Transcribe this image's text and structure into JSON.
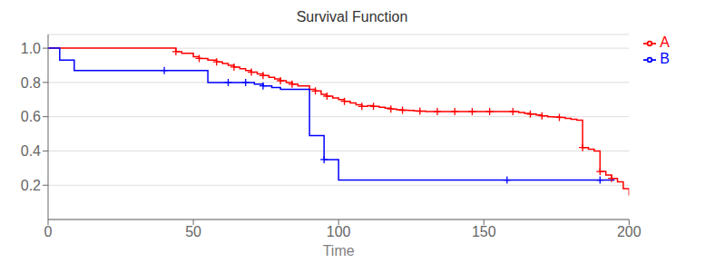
{
  "chart_data": {
    "type": "step",
    "title": "Survival Function",
    "xlabel": "Time",
    "xlim": [
      0,
      200
    ],
    "ylim": [
      0,
      1.08
    ],
    "xticks": [
      0,
      50,
      100,
      150,
      200
    ],
    "yticks": [
      0.2,
      0.4,
      0.6,
      0.8,
      {
        "value": 1.0,
        "label": "1.0"
      }
    ],
    "grid": "y",
    "legend": "right",
    "series": [
      {
        "name": "A",
        "color": "#FF0000",
        "marker": "plus",
        "x": [
          0,
          42,
          44,
          46,
          50,
          52,
          55,
          58,
          60,
          62,
          64,
          66,
          68,
          70,
          72,
          74,
          76,
          78,
          80,
          82,
          84,
          86,
          90,
          92,
          94,
          96,
          98,
          100,
          102,
          104,
          106,
          108,
          110,
          112,
          114,
          116,
          118,
          120,
          122,
          124,
          126,
          128,
          130,
          150,
          160,
          162,
          164,
          166,
          168,
          170,
          172,
          174,
          176,
          178,
          180,
          182,
          184,
          186,
          188,
          190,
          192,
          194,
          196,
          198,
          200
        ],
        "values": [
          1.0,
          1.0,
          0.98,
          0.97,
          0.95,
          0.94,
          0.93,
          0.92,
          0.91,
          0.9,
          0.89,
          0.88,
          0.87,
          0.86,
          0.85,
          0.84,
          0.83,
          0.82,
          0.81,
          0.8,
          0.79,
          0.78,
          0.76,
          0.75,
          0.73,
          0.72,
          0.71,
          0.7,
          0.69,
          0.68,
          0.67,
          0.66,
          0.665,
          0.66,
          0.655,
          0.65,
          0.645,
          0.64,
          0.638,
          0.636,
          0.634,
          0.632,
          0.63,
          0.63,
          0.63,
          0.625,
          0.62,
          0.615,
          0.61,
          0.605,
          0.6,
          0.598,
          0.596,
          0.59,
          0.585,
          0.58,
          0.42,
          0.41,
          0.4,
          0.28,
          0.26,
          0.24,
          0.22,
          0.18,
          0.14
        ],
        "censored_x": [
          44,
          52,
          58,
          64,
          70,
          74,
          80,
          84,
          92,
          96,
          102,
          108,
          112,
          118,
          122,
          128,
          134,
          140,
          146,
          152,
          160,
          166,
          170,
          176,
          184,
          190,
          194
        ],
        "censored_values": [
          0.98,
          0.94,
          0.92,
          0.89,
          0.86,
          0.84,
          0.81,
          0.79,
          0.75,
          0.72,
          0.69,
          0.66,
          0.66,
          0.645,
          0.638,
          0.632,
          0.63,
          0.63,
          0.63,
          0.63,
          0.63,
          0.615,
          0.605,
          0.596,
          0.42,
          0.28,
          0.24
        ]
      },
      {
        "name": "B",
        "color": "#0000FF",
        "marker": "plus",
        "x": [
          0,
          4,
          9,
          40,
          55,
          58,
          62,
          65,
          68,
          71,
          74,
          77,
          80,
          90,
          95,
          100,
          195
        ],
        "values": [
          1.0,
          0.93,
          0.87,
          0.87,
          0.8,
          0.8,
          0.8,
          0.8,
          0.8,
          0.79,
          0.78,
          0.77,
          0.76,
          0.49,
          0.35,
          0.23,
          0.23
        ],
        "censored_x": [
          40,
          62,
          68,
          74,
          95,
          158,
          190
        ],
        "censored_values": [
          0.87,
          0.8,
          0.8,
          0.78,
          0.35,
          0.23,
          0.23
        ]
      }
    ]
  }
}
